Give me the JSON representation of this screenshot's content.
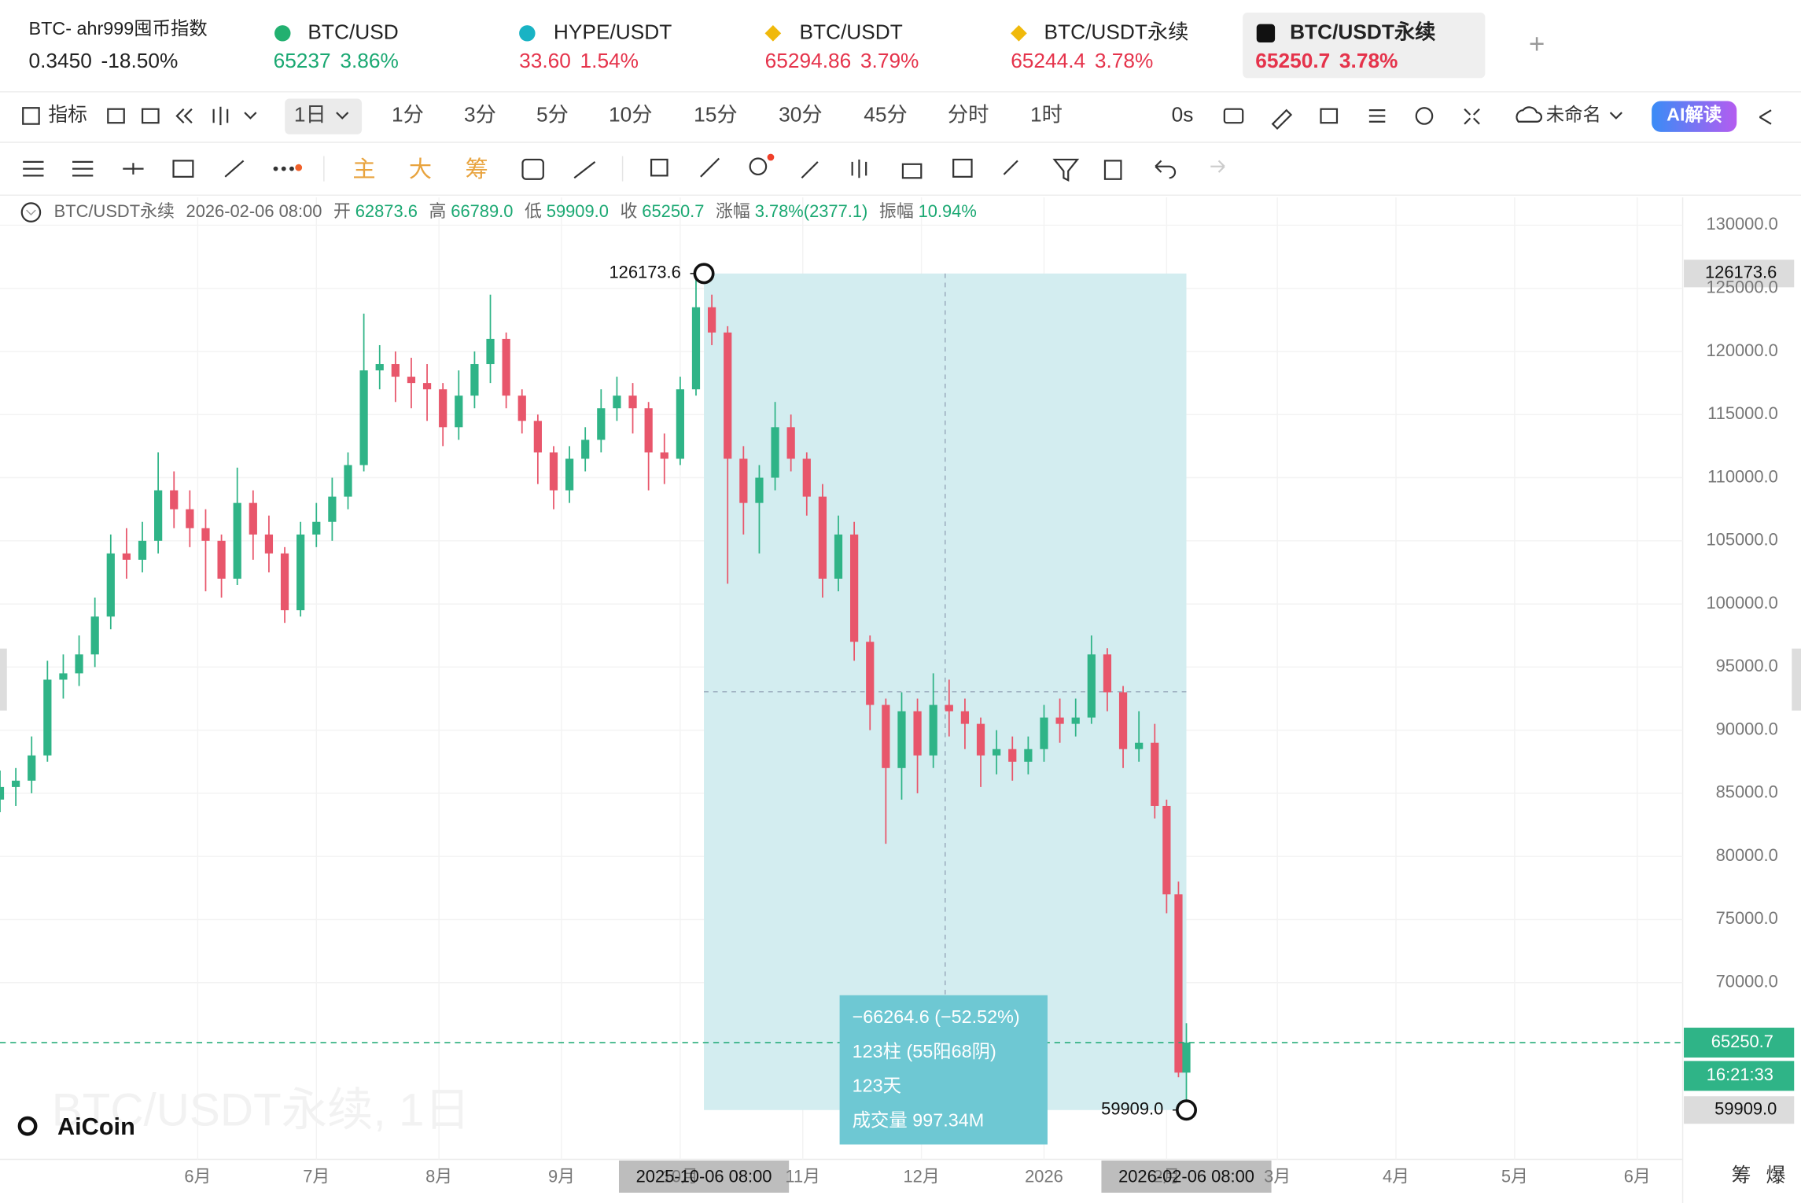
{
  "tabs": [
    {
      "name": "BTC- ahr999囤币指数",
      "price": "0.3450",
      "change": "-18.50%",
      "color": "#222222"
    },
    {
      "name": "BTC/USD",
      "price": "65237",
      "change": "3.86%",
      "color": "#1aa872"
    },
    {
      "name": "HYPE/USDT",
      "price": "33.60",
      "change": "1.54%",
      "color": "#e5334b"
    },
    {
      "name": "BTC/USDT",
      "price": "65294.86",
      "change": "3.79%",
      "color": "#e5334b"
    },
    {
      "name": "BTC/USDT永续",
      "price": "65244.4",
      "change": "3.78%",
      "color": "#e5334b"
    },
    {
      "name": "BTC/USDT永续",
      "price": "65250.7",
      "change": "3.78%",
      "color": "#e5334b"
    }
  ],
  "active_tab": 5,
  "toolbar": {
    "indicator": "指标",
    "intervals": [
      "1日",
      "1分",
      "3分",
      "5分",
      "10分",
      "15分",
      "30分",
      "45分",
      "分时",
      "1时"
    ],
    "countdown_mode": "0s",
    "layout_name": "未命名",
    "ai": "AI解读",
    "overlays": [
      "主",
      "大",
      "筹"
    ],
    "corner": [
      "筹",
      "爆"
    ]
  },
  "chart_data": {
    "type": "candlestick",
    "symbol": "BTC/USDT永续",
    "date": "2026-02-06 08:00",
    "info": [
      {
        "key": "开",
        "value": "62873.6"
      },
      {
        "key": "高",
        "value": "66789.0"
      },
      {
        "key": "低",
        "value": "59909.0"
      },
      {
        "key": "收",
        "value": "65250.7"
      },
      {
        "key": "涨幅",
        "value": "3.78%(2377.1)"
      },
      {
        "key": "振幅",
        "value": "10.94%"
      }
    ],
    "watermark": "BTC/USDT永续, 1日",
    "logo": "AiCoin",
    "up_color": "#2fb487",
    "down_color": "#e8566b",
    "grid": true,
    "xlim": [
      0,
      425.5
    ],
    "ylim": [
      56000,
      132200
    ],
    "xticks": [
      {
        "value": 50,
        "label": "6月"
      },
      {
        "value": 80,
        "label": "7月"
      },
      {
        "value": 111,
        "label": "8月"
      },
      {
        "value": 142,
        "label": "9月"
      },
      {
        "value": 172,
        "label": "10月"
      },
      {
        "value": 203,
        "label": "11月"
      },
      {
        "value": 233,
        "label": "12月"
      },
      {
        "value": 264,
        "label": "2026"
      },
      {
        "value": 295,
        "label": "2月"
      },
      {
        "value": 323,
        "label": "3月"
      },
      {
        "value": 353,
        "label": "4月"
      },
      {
        "value": 383,
        "label": "5月"
      },
      {
        "value": 414,
        "label": "6月"
      }
    ],
    "yticks": [
      {
        "value": 70000,
        "label": "70000.0"
      },
      {
        "value": 75000,
        "label": "75000.0"
      },
      {
        "value": 80000,
        "label": "80000.0"
      },
      {
        "value": 85000,
        "label": "85000.0"
      },
      {
        "value": 90000,
        "label": "90000.0"
      },
      {
        "value": 95000,
        "label": "95000.0"
      },
      {
        "value": 100000,
        "label": "100000.0"
      },
      {
        "value": 105000,
        "label": "105000.0"
      },
      {
        "value": 110000,
        "label": "110000.0"
      },
      {
        "value": 115000,
        "label": "115000.0"
      },
      {
        "value": 120000,
        "label": "120000.0"
      },
      {
        "value": 125000,
        "label": "125000.0"
      },
      {
        "value": 130000,
        "label": "130000.0"
      }
    ],
    "x": [
      0,
      4,
      8,
      12,
      16,
      20,
      24,
      28,
      32,
      36,
      40,
      44,
      48,
      52,
      56,
      60,
      64,
      68,
      72,
      76,
      80,
      84,
      88,
      92,
      96,
      100,
      104,
      108,
      112,
      116,
      120,
      124,
      128,
      132,
      136,
      140,
      144,
      148,
      152,
      156,
      160,
      164,
      168,
      172,
      176,
      180,
      184,
      188,
      192,
      196,
      200,
      204,
      208,
      212,
      216,
      220,
      224,
      228,
      232,
      236,
      240,
      244,
      248,
      252,
      256,
      260,
      264,
      268,
      272,
      276,
      280,
      284,
      288,
      292,
      295,
      298,
      300
    ],
    "ohlc": [
      [
        84500,
        86800,
        83500,
        85500
      ],
      [
        85500,
        87000,
        84000,
        86000
      ],
      [
        86000,
        89500,
        85000,
        88000
      ],
      [
        88000,
        95500,
        87500,
        94000
      ],
      [
        94000,
        96000,
        92500,
        94500
      ],
      [
        94500,
        97500,
        93500,
        96000
      ],
      [
        96000,
        100500,
        95000,
        99000
      ],
      [
        99000,
        105500,
        98000,
        104000
      ],
      [
        104000,
        106000,
        102000,
        103500
      ],
      [
        103500,
        106500,
        102500,
        105000
      ],
      [
        105000,
        112000,
        104000,
        109000
      ],
      [
        109000,
        110500,
        106000,
        107500
      ],
      [
        107500,
        109000,
        104500,
        106000
      ],
      [
        106000,
        107500,
        101000,
        105000
      ],
      [
        105000,
        105500,
        100500,
        102000
      ],
      [
        102000,
        110800,
        101500,
        108000
      ],
      [
        108000,
        109000,
        103500,
        105500
      ],
      [
        105500,
        107000,
        102500,
        104000
      ],
      [
        104000,
        104500,
        98500,
        99500
      ],
      [
        99500,
        106500,
        99000,
        105500
      ],
      [
        105500,
        108000,
        104500,
        106500
      ],
      [
        106500,
        110000,
        105000,
        108500
      ],
      [
        108500,
        112000,
        107500,
        111000
      ],
      [
        111000,
        123000,
        110500,
        118500
      ],
      [
        118500,
        120500,
        117000,
        119000
      ],
      [
        119000,
        120000,
        116000,
        118000
      ],
      [
        118000,
        119500,
        115500,
        117500
      ],
      [
        117500,
        119000,
        114500,
        117000
      ],
      [
        117000,
        117500,
        112500,
        114000
      ],
      [
        114000,
        118500,
        113000,
        116500
      ],
      [
        116500,
        120000,
        115500,
        119000
      ],
      [
        119000,
        124500,
        117500,
        121000
      ],
      [
        121000,
        121500,
        115500,
        116500
      ],
      [
        116500,
        117000,
        113500,
        114500
      ],
      [
        114500,
        115000,
        109500,
        112000
      ],
      [
        112000,
        112500,
        107500,
        109000
      ],
      [
        109000,
        112500,
        108000,
        111500
      ],
      [
        111500,
        114000,
        110500,
        113000
      ],
      [
        113000,
        117000,
        112000,
        115500
      ],
      [
        115500,
        118000,
        114500,
        116500
      ],
      [
        116500,
        117500,
        113500,
        115500
      ],
      [
        115500,
        116000,
        109000,
        112000
      ],
      [
        112000,
        113500,
        109500,
        111500
      ],
      [
        111500,
        118000,
        111000,
        117000
      ],
      [
        117000,
        126173.6,
        116500,
        123500
      ],
      [
        123500,
        124500,
        120500,
        121500
      ],
      [
        121500,
        122000,
        101600,
        111500
      ],
      [
        111500,
        112500,
        105500,
        108000
      ],
      [
        108000,
        111000,
        104000,
        110000
      ],
      [
        110000,
        116000,
        109000,
        114000
      ],
      [
        114000,
        115000,
        110500,
        111500
      ],
      [
        111500,
        112000,
        107000,
        108500
      ],
      [
        108500,
        109500,
        100500,
        102000
      ],
      [
        102000,
        107000,
        101000,
        105500
      ],
      [
        105500,
        106500,
        95500,
        97000
      ],
      [
        97000,
        97500,
        90000,
        92000
      ],
      [
        92000,
        92500,
        81000,
        87000
      ],
      [
        87000,
        93000,
        84500,
        91500
      ],
      [
        91500,
        92500,
        85000,
        88000
      ],
      [
        88000,
        94500,
        87000,
        92000
      ],
      [
        92000,
        94000,
        89500,
        91500
      ],
      [
        91500,
        92500,
        88500,
        90500
      ],
      [
        90500,
        91000,
        85500,
        88000
      ],
      [
        88000,
        90000,
        86500,
        88500
      ],
      [
        88500,
        89500,
        86000,
        87500
      ],
      [
        87500,
        89500,
        86500,
        88500
      ],
      [
        88500,
        92000,
        87500,
        91000
      ],
      [
        91000,
        92500,
        89000,
        90500
      ],
      [
        90500,
        92500,
        89500,
        91000
      ],
      [
        91000,
        97500,
        90500,
        96000
      ],
      [
        96000,
        96500,
        91500,
        93000
      ],
      [
        93000,
        93500,
        87000,
        88500
      ],
      [
        88500,
        91500,
        87500,
        89000
      ],
      [
        89000,
        90500,
        83000,
        84000
      ],
      [
        84000,
        84500,
        75500,
        77000
      ],
      [
        77000,
        78000,
        62500,
        62873.6
      ],
      [
        62873.6,
        66789,
        59909,
        65250.7
      ]
    ],
    "last_price": 65250.7,
    "countdown": "16:21:33",
    "crosshair_x": [
      {
        "value": 178,
        "label": "2025-10-06 08:00"
      },
      {
        "value": 300,
        "label": "2026-02-06 08:00"
      }
    ],
    "measure": {
      "x": [
        178,
        300
      ],
      "y": [
        126173.6,
        {
          "value": 59909,
          "label": "59909.0"
        }
      ],
      "color": "#d3edf0",
      "box_color": "#6ec8d3",
      "stats": [
        "−66264.6 (−52.52%)",
        "123柱 (55阳68阴)",
        "123天",
        "成交量 997.34M"
      ]
    }
  }
}
